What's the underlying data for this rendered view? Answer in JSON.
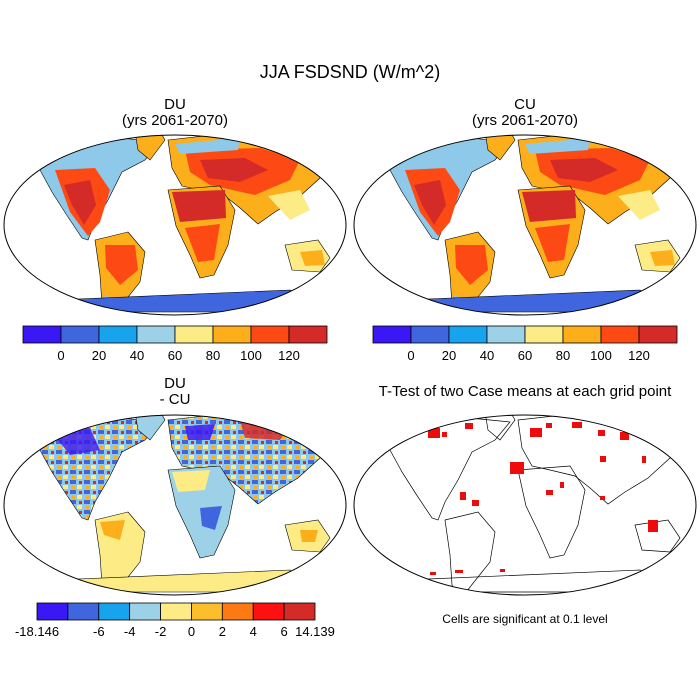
{
  "figure": {
    "title": "JJA FSDSND (W/m^2)"
  },
  "panels": {
    "du": {
      "title_line1": "DU",
      "title_line2": "(yrs 2061-2070)"
    },
    "cu": {
      "title_line1": "CU",
      "title_line2": "(yrs 2061-2070)"
    },
    "diff": {
      "title_line1": "DU",
      "title_line2": "- CU"
    },
    "ttest": {
      "title": "T-Test of two Case means at each grid point",
      "note": "Cells are significant at 0.1 level"
    }
  },
  "colorbars": {
    "main": {
      "colors": [
        "#3a18f5",
        "#3f66df",
        "#18a3ef",
        "#9cd1e8",
        "#fdeb86",
        "#fcae1b",
        "#fd4a14",
        "#d42a28"
      ],
      "ticks": [
        "0",
        "20",
        "40",
        "60",
        "80",
        "100",
        "120"
      ]
    },
    "diff": {
      "colors": [
        "#3a18f5",
        "#3f66df",
        "#18a3ef",
        "#9cd1e8",
        "#fdeb86",
        "#fcbe2a",
        "#fd7a13",
        "#fd1010",
        "#d42a28"
      ],
      "ticks": [
        "-18.146",
        "-6",
        "-4",
        "-2",
        "0",
        "2",
        "4",
        "6",
        "14.139"
      ]
    }
  },
  "colors": {
    "significant": "#ee0b0b",
    "land_outline": "#000000"
  }
}
